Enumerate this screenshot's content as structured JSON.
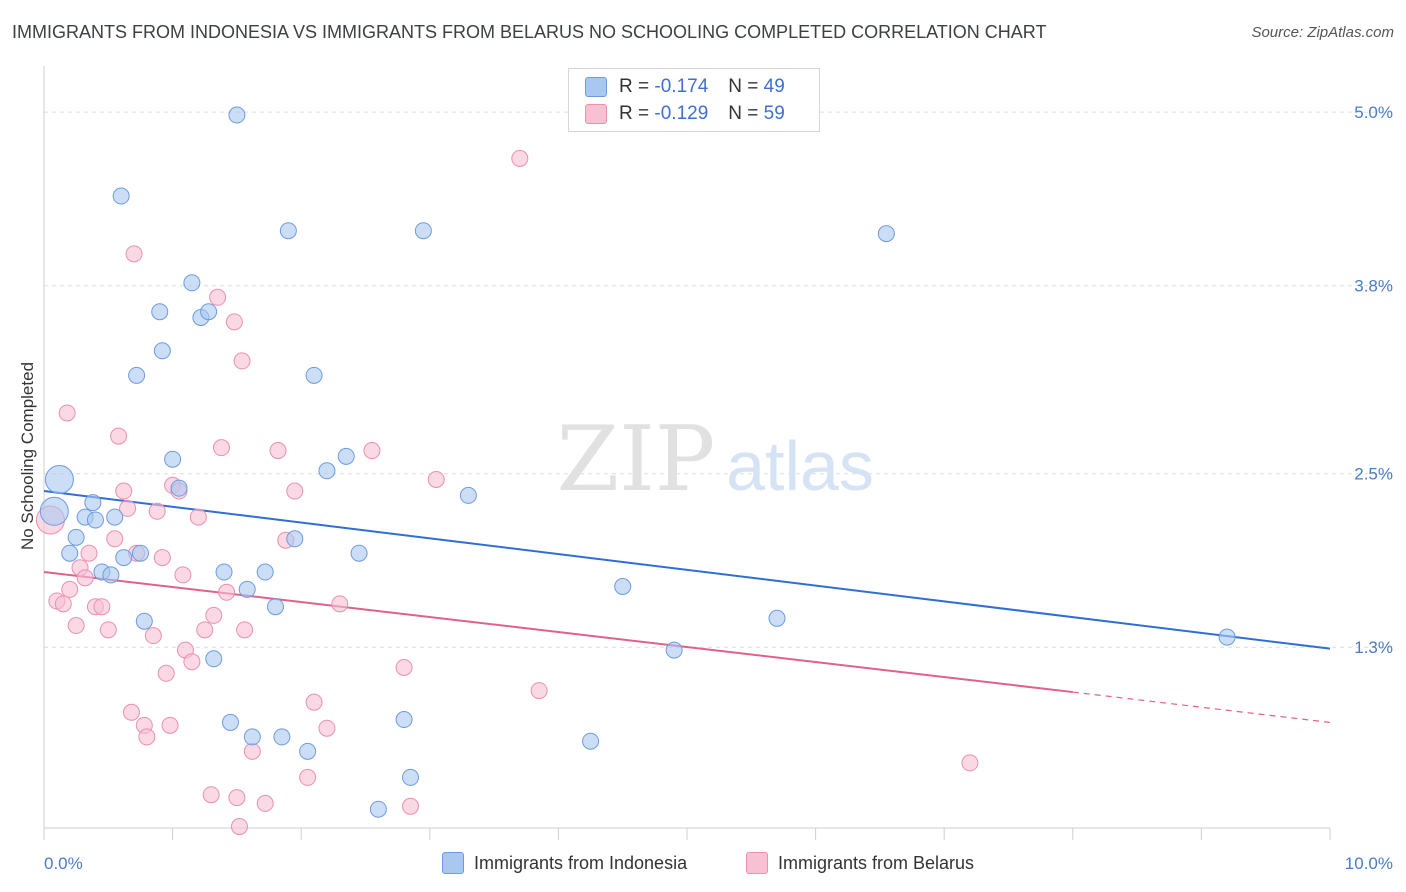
{
  "title": "IMMIGRANTS FROM INDONESIA VS IMMIGRANTS FROM BELARUS NO SCHOOLING COMPLETED CORRELATION CHART",
  "source": "Source: ZipAtlas.com",
  "watermark": {
    "zip": "ZIP",
    "atlas": "atlas"
  },
  "chart_data": {
    "type": "scatter",
    "xlabel": "",
    "ylabel": "No Schooling Completed",
    "xlim": [
      0,
      10
    ],
    "ylim": [
      0.05,
      5.25
    ],
    "x_tick_labels": [
      {
        "value": 0,
        "label": "0.0%"
      },
      {
        "value": 10,
        "label": "10.0%"
      }
    ],
    "y_tick_labels": [
      {
        "value": 1.3,
        "label": "1.3%"
      },
      {
        "value": 2.5,
        "label": "2.5%"
      },
      {
        "value": 3.8,
        "label": "3.8%"
      },
      {
        "value": 5.0,
        "label": "5.0%"
      }
    ],
    "stats": [
      {
        "series": "Immigrants from Indonesia",
        "r_label": "R =",
        "r": "-0.174",
        "n_label": "N =",
        "n": "49"
      },
      {
        "series": "Immigrants from Belarus",
        "r_label": "R =",
        "r": "-0.129",
        "n_label": "N =",
        "n": "59"
      }
    ],
    "series": [
      {
        "name": "Immigrants from Indonesia",
        "color": "#a9c8f0",
        "stroke": "#6d9be0",
        "line_color": "#2f6fd1",
        "trend": {
          "x1": 0,
          "y1": 2.38,
          "x2": 10,
          "y2": 1.29
        },
        "points": [
          [
            0.12,
            2.46
          ],
          [
            0.08,
            2.24
          ],
          [
            0.2,
            1.95
          ],
          [
            0.25,
            2.06
          ],
          [
            0.32,
            2.2
          ],
          [
            0.4,
            2.18
          ],
          [
            0.38,
            2.3
          ],
          [
            0.45,
            1.82
          ],
          [
            0.52,
            1.8
          ],
          [
            0.55,
            2.2
          ],
          [
            0.62,
            1.92
          ],
          [
            0.75,
            1.95
          ],
          [
            0.78,
            1.48
          ],
          [
            0.6,
            4.42
          ],
          [
            0.72,
            3.18
          ],
          [
            0.9,
            3.62
          ],
          [
            0.92,
            3.35
          ],
          [
            1.0,
            2.6
          ],
          [
            1.05,
            2.4
          ],
          [
            1.15,
            3.82
          ],
          [
            1.22,
            3.58
          ],
          [
            1.28,
            3.62
          ],
          [
            1.32,
            1.22
          ],
          [
            1.4,
            1.82
          ],
          [
            1.45,
            0.78
          ],
          [
            1.5,
            4.98
          ],
          [
            1.58,
            1.7
          ],
          [
            1.62,
            0.68
          ],
          [
            1.72,
            1.82
          ],
          [
            1.8,
            1.58
          ],
          [
            1.85,
            0.68
          ],
          [
            1.9,
            4.18
          ],
          [
            1.95,
            2.05
          ],
          [
            2.05,
            0.58
          ],
          [
            2.1,
            3.18
          ],
          [
            2.2,
            2.52
          ],
          [
            2.35,
            2.62
          ],
          [
            2.45,
            1.95
          ],
          [
            2.6,
            0.18
          ],
          [
            2.8,
            0.8
          ],
          [
            2.85,
            0.4
          ],
          [
            2.95,
            4.18
          ],
          [
            3.3,
            2.35
          ],
          [
            4.25,
            0.65
          ],
          [
            4.5,
            1.72
          ],
          [
            4.9,
            1.28
          ],
          [
            5.7,
            1.5
          ],
          [
            6.55,
            4.16
          ],
          [
            9.2,
            1.37
          ]
        ]
      },
      {
        "name": "Immigrants from Belarus",
        "color": "#f7c0d3",
        "stroke": "#ec8fb0",
        "line_color": "#e0608e",
        "trend": {
          "x1": 0,
          "y1": 1.82,
          "x2": 8.0,
          "y2": 0.99
        },
        "trend_dashed": {
          "x1": 8.0,
          "y1": 0.99,
          "x2": 10,
          "y2": 0.78
        },
        "points": [
          [
            0.05,
            2.18
          ],
          [
            0.1,
            1.62
          ],
          [
            0.15,
            1.6
          ],
          [
            0.18,
            2.92
          ],
          [
            0.2,
            1.7
          ],
          [
            0.25,
            1.45
          ],
          [
            0.28,
            1.85
          ],
          [
            0.32,
            1.78
          ],
          [
            0.35,
            1.95
          ],
          [
            0.4,
            1.58
          ],
          [
            0.45,
            1.58
          ],
          [
            0.5,
            1.42
          ],
          [
            0.55,
            2.05
          ],
          [
            0.58,
            2.76
          ],
          [
            0.62,
            2.38
          ],
          [
            0.65,
            2.26
          ],
          [
            0.68,
            0.85
          ],
          [
            0.72,
            1.95
          ],
          [
            0.7,
            4.02
          ],
          [
            0.78,
            0.76
          ],
          [
            0.8,
            0.68
          ],
          [
            0.85,
            1.38
          ],
          [
            0.88,
            2.24
          ],
          [
            0.92,
            1.92
          ],
          [
            0.95,
            1.12
          ],
          [
            0.98,
            0.76
          ],
          [
            1.0,
            2.42
          ],
          [
            1.05,
            2.38
          ],
          [
            1.08,
            1.8
          ],
          [
            1.1,
            1.28
          ],
          [
            1.15,
            1.2
          ],
          [
            1.2,
            2.2
          ],
          [
            1.25,
            1.42
          ],
          [
            1.3,
            0.28
          ],
          [
            1.32,
            1.52
          ],
          [
            1.35,
            3.72
          ],
          [
            1.38,
            2.68
          ],
          [
            1.42,
            1.68
          ],
          [
            1.48,
            3.55
          ],
          [
            1.5,
            0.26
          ],
          [
            1.52,
            0.06
          ],
          [
            1.54,
            3.28
          ],
          [
            1.56,
            1.42
          ],
          [
            1.62,
            0.58
          ],
          [
            1.72,
            0.22
          ],
          [
            1.82,
            2.66
          ],
          [
            1.88,
            2.04
          ],
          [
            1.95,
            2.38
          ],
          [
            2.05,
            0.4
          ],
          [
            2.1,
            0.92
          ],
          [
            2.3,
            1.6
          ],
          [
            2.55,
            2.66
          ],
          [
            2.8,
            1.16
          ],
          [
            2.85,
            0.2
          ],
          [
            3.05,
            2.46
          ],
          [
            3.7,
            4.68
          ],
          [
            3.85,
            1.0
          ],
          [
            7.2,
            0.5
          ],
          [
            2.2,
            0.74
          ]
        ]
      }
    ]
  }
}
